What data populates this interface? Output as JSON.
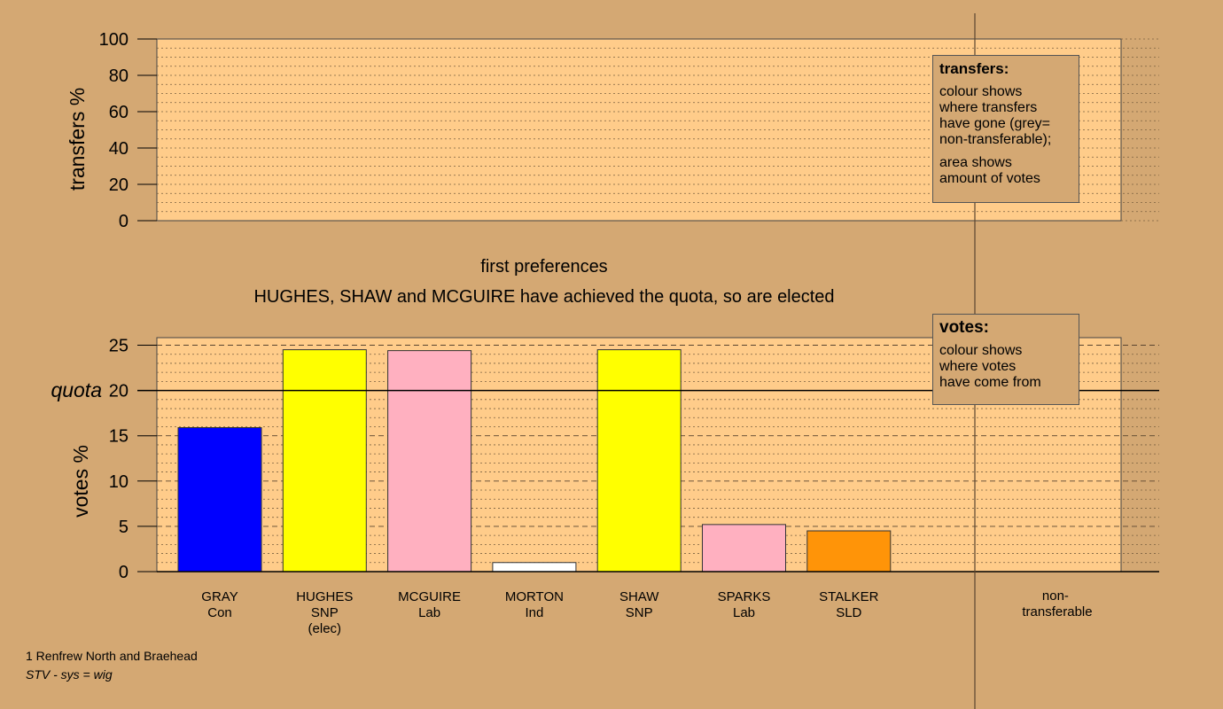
{
  "chart_data": [
    {
      "type": "area",
      "ylabel": "transfers %",
      "ylim": [
        0,
        100
      ],
      "yticks": [
        0,
        20,
        40,
        60,
        80,
        100
      ],
      "series": [],
      "legend": {
        "title": "transfers:",
        "lines": [
          "colour shows\nwhere transfers\nhave gone (grey=\nnon-transferable);",
          "area shows\namount of votes"
        ],
        "placement": "top-right"
      }
    },
    {
      "type": "bar",
      "title": "first preferences",
      "subtitle": "HUGHES, SHAW and MCGUIRE have achieved the quota, so are elected",
      "ylabel": "votes %",
      "ylim": [
        0,
        25
      ],
      "yticks": [
        0,
        5,
        10,
        15,
        20,
        25
      ],
      "quota": 20,
      "quota_label": "quota",
      "categories": [
        {
          "name": "GRAY",
          "party": "Con",
          "note": ""
        },
        {
          "name": "HUGHES",
          "party": "SNP",
          "note": "(elec)"
        },
        {
          "name": "MCGUIRE",
          "party": "Lab",
          "note": ""
        },
        {
          "name": "MORTON",
          "party": "Ind",
          "note": ""
        },
        {
          "name": "SHAW",
          "party": "SNP",
          "note": ""
        },
        {
          "name": "SPARKS",
          "party": "Lab",
          "note": ""
        },
        {
          "name": "STALKER",
          "party": "SLD",
          "note": ""
        }
      ],
      "values": [
        15.9,
        24.5,
        24.4,
        1.0,
        24.5,
        5.2,
        4.5
      ],
      "colors": [
        "#0000ff",
        "#ffff00",
        "#ffb0c0",
        "#ffffff",
        "#ffff00",
        "#ffb0c0",
        "#ff9408"
      ],
      "nontransferable_label": "non-\ntransferable",
      "legend": {
        "title": "votes:",
        "lines": [
          "colour shows\nwhere votes\nhave come from"
        ],
        "placement": "top-right"
      }
    }
  ],
  "footer": {
    "ward": "1 Renfrew North and Braehead",
    "system": "STV - sys = wig"
  },
  "colors": {
    "background": "#d4a873",
    "plot_area": "#ffcc8a"
  }
}
